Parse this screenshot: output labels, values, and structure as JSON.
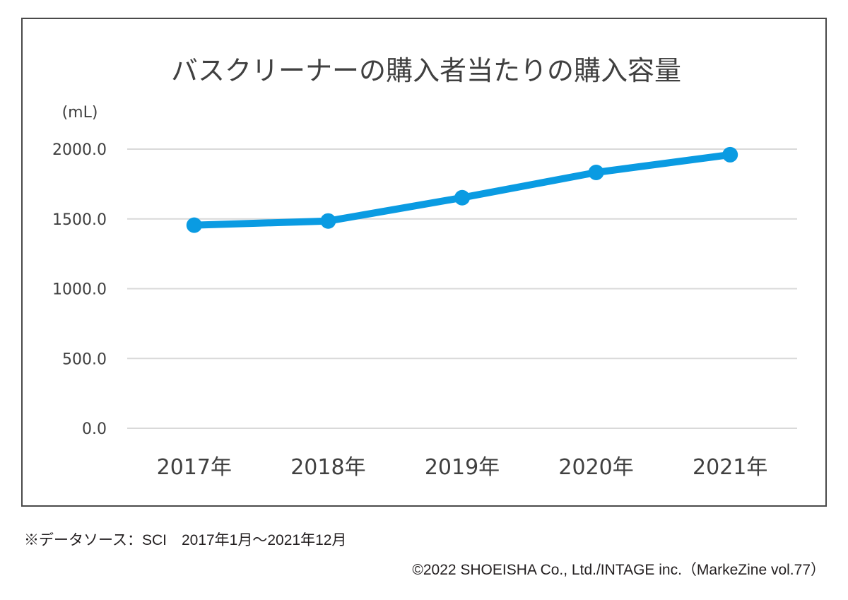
{
  "chart_data": {
    "type": "line",
    "title": "バスクリーナーの購入者当たりの購入容量",
    "xlabel": "",
    "ylabel": "(mL)",
    "categories": [
      "2017年",
      "2018年",
      "2019年",
      "2020年",
      "2021年"
    ],
    "series": [
      {
        "name": "購入者当たりの購入容量",
        "values": [
          1455,
          1485,
          1652,
          1833,
          1960
        ],
        "color": "#0a9be2"
      }
    ],
    "ylim": [
      0,
      2000
    ],
    "yticks": [
      0,
      500,
      1000,
      1500,
      2000
    ],
    "ytick_labels": [
      "0.0",
      "500.0",
      "1000.0",
      "1500.0",
      "2000.0"
    ],
    "grid": true,
    "legend": "none",
    "markers": true
  },
  "colors": {
    "line": "#0a9be2",
    "grid": "#d9d9d9",
    "text": "#404040",
    "frame": "#4a4a4a"
  },
  "footer": {
    "source_note": "※データソース：SCI　2017年1月～2021年12月",
    "credit": "©2022 SHOEISHA Co., Ltd./INTAGE inc.（MarkeZine vol.77）"
  }
}
